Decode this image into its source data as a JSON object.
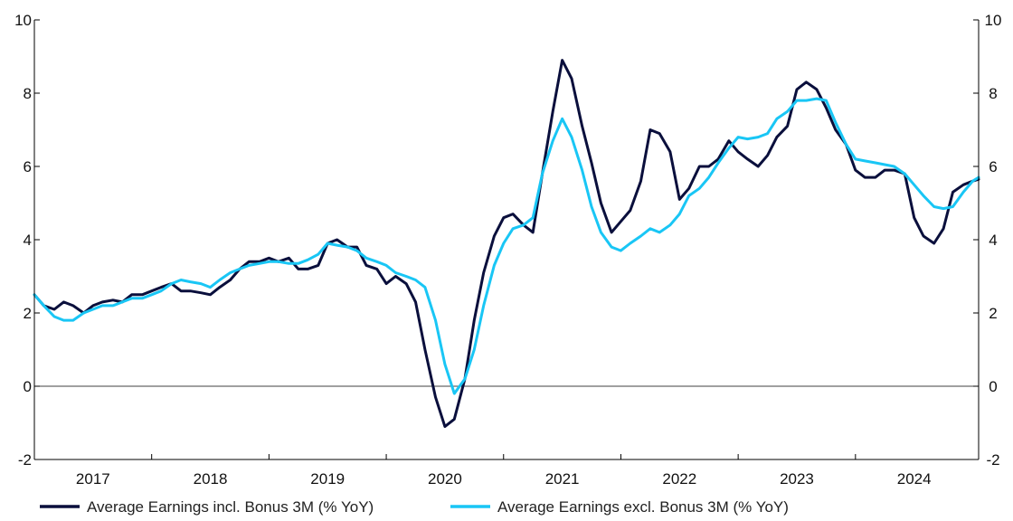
{
  "chart_data": {
    "type": "line",
    "title": "",
    "xlabel": "",
    "ylabel": "",
    "ylim": [
      -2,
      10
    ],
    "xlim": [
      2016.5,
      2024.55
    ],
    "y_ticks": [
      -2,
      0,
      2,
      4,
      6,
      8,
      10
    ],
    "y_tick_labels": [
      "-2",
      "0",
      "2",
      "4",
      "6",
      "8",
      "10"
    ],
    "year_labels": [
      "2017",
      "2018",
      "2019",
      "2020",
      "2021",
      "2022",
      "2023",
      "2024"
    ],
    "year_centers": [
      2017.0,
      2018.0,
      2019.0,
      2020.0,
      2021.0,
      2022.0,
      2023.0,
      2024.0
    ],
    "year_boundaries": [
      2017.5,
      2018.5,
      2019.5,
      2020.5,
      2021.5,
      2022.5,
      2023.5
    ],
    "reference_line": 0,
    "legend_position": "bottom",
    "colors": {
      "series_incl": "#0a0f3c",
      "series_excl": "#19c6f5",
      "axis": "#000000",
      "zero_line": "#000000"
    },
    "series": [
      {
        "name": "Average Earnings incl. Bonus 3M (% YoY)",
        "color": "#0a0f3c",
        "x": [
          2016.5,
          2016.58,
          2016.67,
          2016.75,
          2016.83,
          2016.92,
          2017.0,
          2017.08,
          2017.17,
          2017.25,
          2017.33,
          2017.42,
          2017.5,
          2017.58,
          2017.67,
          2017.75,
          2017.83,
          2017.92,
          2018.0,
          2018.08,
          2018.17,
          2018.25,
          2018.33,
          2018.42,
          2018.5,
          2018.58,
          2018.67,
          2018.75,
          2018.83,
          2018.92,
          2019.0,
          2019.08,
          2019.17,
          2019.25,
          2019.33,
          2019.42,
          2019.5,
          2019.58,
          2019.67,
          2019.75,
          2019.83,
          2019.92,
          2020.0,
          2020.08,
          2020.17,
          2020.25,
          2020.33,
          2020.42,
          2020.5,
          2020.58,
          2020.67,
          2020.75,
          2020.83,
          2020.92,
          2021.0,
          2021.08,
          2021.17,
          2021.25,
          2021.33,
          2021.42,
          2021.5,
          2021.58,
          2021.67,
          2021.75,
          2021.83,
          2021.92,
          2022.0,
          2022.08,
          2022.17,
          2022.25,
          2022.33,
          2022.42,
          2022.5,
          2022.58,
          2022.67,
          2022.75,
          2022.83,
          2022.92,
          2023.0,
          2023.08,
          2023.17,
          2023.25,
          2023.33,
          2023.42,
          2023.5,
          2023.58,
          2023.67,
          2023.75,
          2023.83,
          2023.92,
          2024.0,
          2024.08,
          2024.17,
          2024.25,
          2024.33,
          2024.42,
          2024.5,
          2024.55
        ],
        "values": [
          2.5,
          2.2,
          2.1,
          2.3,
          2.2,
          2.0,
          2.2,
          2.3,
          2.35,
          2.3,
          2.5,
          2.5,
          2.6,
          2.7,
          2.8,
          2.6,
          2.6,
          2.55,
          2.5,
          2.7,
          2.9,
          3.2,
          3.4,
          3.4,
          3.5,
          3.4,
          3.5,
          3.2,
          3.2,
          3.3,
          3.9,
          4.0,
          3.8,
          3.8,
          3.3,
          3.2,
          2.8,
          3.0,
          2.8,
          2.3,
          1.0,
          -0.3,
          -1.1,
          -0.9,
          0.2,
          1.8,
          3.1,
          4.1,
          4.6,
          4.7,
          4.4,
          4.2,
          5.8,
          7.5,
          8.9,
          8.4,
          7.1,
          6.1,
          5.0,
          4.2,
          4.5,
          4.8,
          5.6,
          7.0,
          6.9,
          6.4,
          5.1,
          5.4,
          6.0,
          6.0,
          6.2,
          6.7,
          6.4,
          6.2,
          6.0,
          6.3,
          6.8,
          7.1,
          8.1,
          8.3,
          8.1,
          7.6,
          7.0,
          6.6,
          5.9,
          5.7,
          5.7,
          5.9,
          5.9,
          5.8,
          4.6,
          4.1,
          3.9,
          4.3,
          5.3,
          5.5,
          5.6,
          5.65
        ]
      },
      {
        "name": "Average Earnings excl. Bonus 3M (% YoY)",
        "color": "#19c6f5",
        "x": [
          2016.5,
          2016.58,
          2016.67,
          2016.75,
          2016.83,
          2016.92,
          2017.0,
          2017.08,
          2017.17,
          2017.25,
          2017.33,
          2017.42,
          2017.5,
          2017.58,
          2017.67,
          2017.75,
          2017.83,
          2017.92,
          2018.0,
          2018.08,
          2018.17,
          2018.25,
          2018.33,
          2018.42,
          2018.5,
          2018.58,
          2018.67,
          2018.75,
          2018.83,
          2018.92,
          2019.0,
          2019.08,
          2019.17,
          2019.25,
          2019.33,
          2019.42,
          2019.5,
          2019.58,
          2019.67,
          2019.75,
          2019.83,
          2019.92,
          2020.0,
          2020.08,
          2020.17,
          2020.25,
          2020.33,
          2020.42,
          2020.5,
          2020.58,
          2020.67,
          2020.75,
          2020.83,
          2020.92,
          2021.0,
          2021.08,
          2021.17,
          2021.25,
          2021.33,
          2021.42,
          2021.5,
          2021.58,
          2021.67,
          2021.75,
          2021.83,
          2021.92,
          2022.0,
          2022.08,
          2022.17,
          2022.25,
          2022.33,
          2022.42,
          2022.5,
          2022.58,
          2022.67,
          2022.75,
          2022.83,
          2022.92,
          2023.0,
          2023.08,
          2023.17,
          2023.25,
          2023.33,
          2023.42,
          2023.5,
          2023.58,
          2023.67,
          2023.75,
          2023.83,
          2023.92,
          2024.0,
          2024.08,
          2024.17,
          2024.25,
          2024.33,
          2024.42,
          2024.5,
          2024.55
        ],
        "values": [
          2.5,
          2.2,
          1.9,
          1.8,
          1.8,
          2.0,
          2.1,
          2.2,
          2.2,
          2.3,
          2.4,
          2.4,
          2.5,
          2.6,
          2.8,
          2.9,
          2.85,
          2.8,
          2.7,
          2.9,
          3.1,
          3.2,
          3.3,
          3.35,
          3.4,
          3.4,
          3.35,
          3.35,
          3.45,
          3.6,
          3.9,
          3.85,
          3.8,
          3.7,
          3.5,
          3.4,
          3.3,
          3.1,
          3.0,
          2.9,
          2.7,
          1.8,
          0.6,
          -0.2,
          0.2,
          1.0,
          2.2,
          3.3,
          3.9,
          4.3,
          4.4,
          4.6,
          5.8,
          6.7,
          7.3,
          6.8,
          5.9,
          4.9,
          4.2,
          3.8,
          3.7,
          3.9,
          4.1,
          4.3,
          4.2,
          4.4,
          4.7,
          5.2,
          5.4,
          5.7,
          6.1,
          6.5,
          6.8,
          6.75,
          6.8,
          6.9,
          7.3,
          7.5,
          7.8,
          7.8,
          7.85,
          7.8,
          7.2,
          6.6,
          6.2,
          6.15,
          6.1,
          6.05,
          6.0,
          5.8,
          5.5,
          5.2,
          4.9,
          4.85,
          4.9,
          5.3,
          5.6,
          5.7
        ]
      }
    ]
  }
}
